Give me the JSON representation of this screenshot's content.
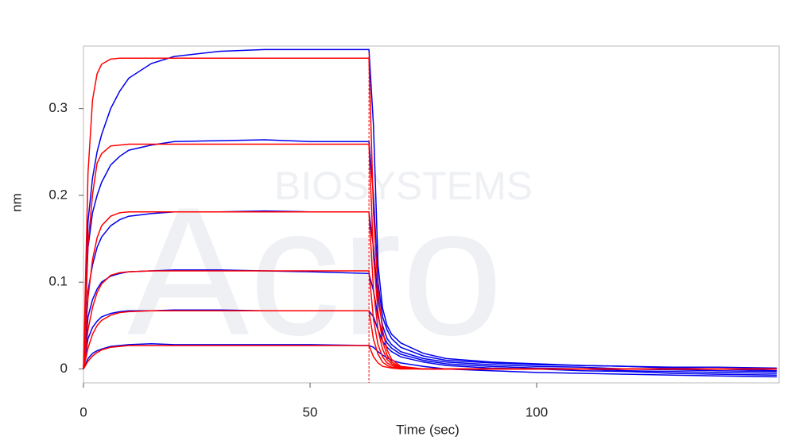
{
  "chart_data": {
    "type": "line",
    "x_label": "Time (sec)",
    "y_label": "nm",
    "watermark": [
      "Acro",
      "BIOSYSTEMS"
    ],
    "xlim": [
      0,
      153.5
    ],
    "ylim": [
      -0.016,
      0.372
    ],
    "xticks": [
      0,
      50,
      100
    ],
    "yticks": [
      0,
      0.1,
      0.2,
      0.3
    ],
    "vline": 63,
    "vline_color": "#ff0000",
    "x": [
      0,
      1,
      2,
      3,
      4,
      6,
      8,
      10,
      15,
      20,
      30,
      40,
      50,
      63,
      64,
      65,
      66,
      67,
      68,
      70,
      75,
      80,
      90,
      100,
      110,
      120,
      130,
      140,
      153
    ],
    "series": [
      {
        "color": "#0000ee",
        "values": [
          0,
          0.17,
          0.22,
          0.25,
          0.27,
          0.3,
          0.32,
          0.335,
          0.352,
          0.36,
          0.366,
          0.368,
          0.368,
          0.368,
          0.28,
          0.12,
          0.07,
          0.05,
          0.04,
          0.03,
          0.018,
          0.012,
          0.008,
          0.006,
          0.004,
          0.003,
          0.002,
          0.002,
          0.001
        ]
      },
      {
        "color": "#0000ee",
        "values": [
          0,
          0.14,
          0.18,
          0.2,
          0.215,
          0.235,
          0.245,
          0.252,
          0.258,
          0.262,
          0.263,
          0.264,
          0.262,
          0.262,
          0.2,
          0.1,
          0.06,
          0.045,
          0.035,
          0.025,
          0.015,
          0.01,
          0.007,
          0.005,
          0.004,
          0.003,
          0.001,
          0,
          -0.002
        ]
      },
      {
        "color": "#0000ee",
        "values": [
          0,
          0.09,
          0.12,
          0.14,
          0.152,
          0.165,
          0.172,
          0.176,
          0.179,
          0.181,
          0.181,
          0.182,
          0.181,
          0.181,
          0.14,
          0.08,
          0.05,
          0.035,
          0.028,
          0.02,
          0.012,
          0.008,
          0.005,
          0.003,
          0.002,
          0,
          -0.001,
          -0.002,
          -0.003
        ]
      },
      {
        "color": "#0000ee",
        "values": [
          0,
          0.06,
          0.08,
          0.092,
          0.1,
          0.107,
          0.11,
          0.112,
          0.113,
          0.114,
          0.114,
          0.113,
          0.112,
          0.11,
          0.09,
          0.06,
          0.04,
          0.03,
          0.024,
          0.017,
          0.01,
          0.006,
          0.003,
          0.001,
          0,
          -0.002,
          -0.003,
          -0.004,
          -0.005
        ]
      },
      {
        "color": "#0000ee",
        "values": [
          0,
          0.035,
          0.048,
          0.055,
          0.06,
          0.064,
          0.066,
          0.067,
          0.067,
          0.068,
          0.068,
          0.067,
          0.067,
          0.067,
          0.06,
          0.045,
          0.032,
          0.025,
          0.02,
          0.014,
          0.008,
          0.004,
          0.001,
          0,
          -0.002,
          -0.003,
          -0.005,
          -0.006,
          -0.007
        ]
      },
      {
        "color": "#0000ee",
        "values": [
          0,
          0.012,
          0.018,
          0.021,
          0.023,
          0.026,
          0.027,
          0.028,
          0.029,
          0.028,
          0.028,
          0.028,
          0.028,
          0.027,
          0.025,
          0.02,
          0.016,
          0.013,
          0.01,
          0.007,
          0.003,
          0,
          -0.002,
          -0.004,
          -0.005,
          -0.006,
          -0.007,
          -0.008,
          -0.009
        ]
      },
      {
        "color": "#ff0000",
        "values": [
          0,
          0.226,
          0.31,
          0.34,
          0.351,
          0.357,
          0.358,
          0.358,
          0.358,
          0.358,
          0.358,
          0.358,
          0.358,
          0.358,
          0.18,
          0.09,
          0.045,
          0.022,
          0.011,
          0.003,
          0,
          0,
          0,
          0,
          0,
          0,
          0,
          0,
          0
        ]
      },
      {
        "color": "#ff0000",
        "values": [
          0,
          0.143,
          0.201,
          0.237,
          0.248,
          0.257,
          0.258,
          0.259,
          0.259,
          0.259,
          0.259,
          0.259,
          0.259,
          0.259,
          0.13,
          0.065,
          0.032,
          0.016,
          0.008,
          0.002,
          0,
          0,
          0,
          0,
          0,
          0,
          0,
          0,
          0
        ]
      },
      {
        "color": "#ff0000",
        "values": [
          0,
          0.082,
          0.126,
          0.151,
          0.165,
          0.176,
          0.18,
          0.181,
          0.181,
          0.181,
          0.181,
          0.181,
          0.181,
          0.181,
          0.091,
          0.045,
          0.023,
          0.011,
          0.006,
          0.001,
          0,
          0,
          0,
          0,
          0,
          0,
          0,
          0,
          0
        ]
      },
      {
        "color": "#ff0000",
        "values": [
          0,
          0.045,
          0.071,
          0.088,
          0.098,
          0.108,
          0.111,
          0.112,
          0.113,
          0.113,
          0.113,
          0.113,
          0.113,
          0.113,
          0.057,
          0.028,
          0.014,
          0.007,
          0.004,
          0.001,
          0,
          0,
          0,
          0,
          0,
          0,
          0,
          0,
          0
        ]
      },
      {
        "color": "#ff0000",
        "values": [
          0,
          0.024,
          0.04,
          0.05,
          0.056,
          0.062,
          0.065,
          0.066,
          0.067,
          0.067,
          0.067,
          0.067,
          0.067,
          0.067,
          0.034,
          0.017,
          0.008,
          0.004,
          0.002,
          0.001,
          0,
          0,
          0,
          0,
          0,
          0,
          0,
          0,
          0
        ]
      },
      {
        "color": "#ff0000",
        "values": [
          0,
          0.009,
          0.015,
          0.019,
          0.022,
          0.025,
          0.026,
          0.027,
          0.027,
          0.027,
          0.027,
          0.027,
          0.027,
          0.027,
          0.014,
          0.007,
          0.003,
          0.002,
          0.001,
          0,
          0,
          0,
          0,
          0,
          0,
          0,
          0,
          0,
          0
        ]
      }
    ]
  }
}
